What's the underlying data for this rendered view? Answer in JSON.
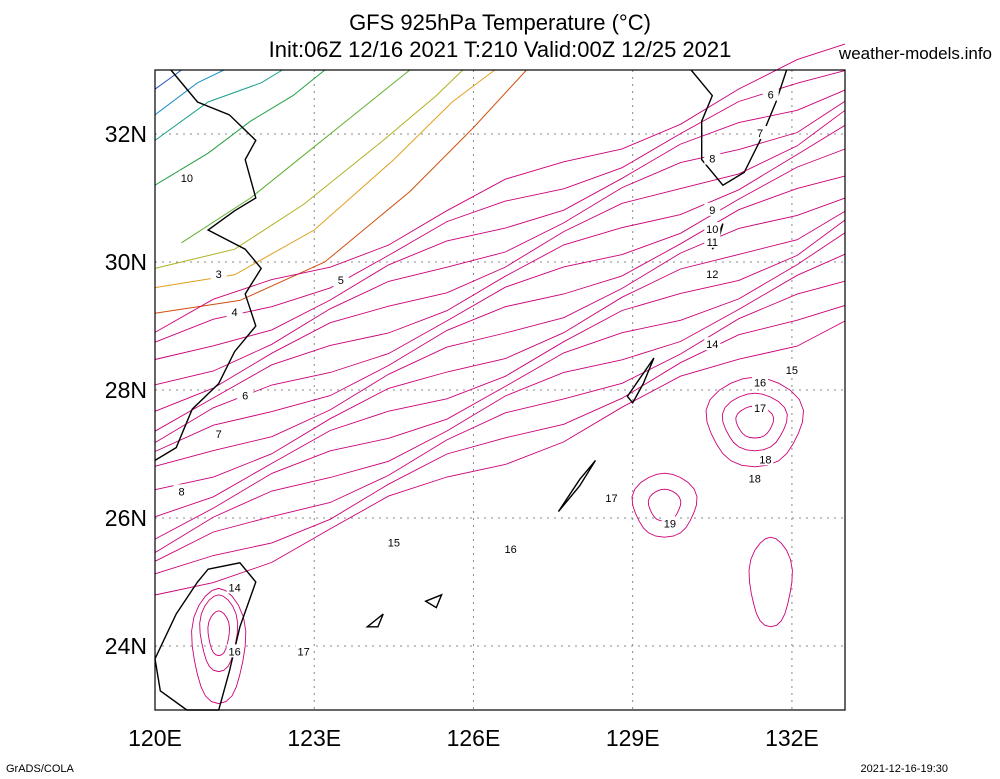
{
  "chart_data": {
    "type": "contour",
    "title": "GFS 925hPa Temperature (°C)",
    "subtitle": "Init:06Z 12/16 2021 T:210 Valid:00Z 12/25 2021",
    "x_ticks": [
      "120E",
      "123E",
      "126E",
      "129E",
      "132E"
    ],
    "y_ticks": [
      "24N",
      "26N",
      "28N",
      "30N",
      "32N"
    ],
    "xlim": [
      120,
      133
    ],
    "ylim": [
      23,
      33
    ],
    "grid": true,
    "contour_labels": [
      {
        "text": "6",
        "lon": 131.6,
        "lat": 32.6
      },
      {
        "text": "7",
        "lon": 131.4,
        "lat": 32.0
      },
      {
        "text": "8",
        "lon": 130.5,
        "lat": 31.6
      },
      {
        "text": "9",
        "lon": 130.5,
        "lat": 30.8
      },
      {
        "text": "10",
        "lon": 130.5,
        "lat": 30.5
      },
      {
        "text": "11",
        "lon": 130.5,
        "lat": 30.3
      },
      {
        "text": "12",
        "lon": 130.5,
        "lat": 29.8
      },
      {
        "text": "14",
        "lon": 130.5,
        "lat": 28.7
      },
      {
        "text": "15",
        "lon": 132.0,
        "lat": 28.3
      },
      {
        "text": "16",
        "lon": 131.4,
        "lat": 28.1
      },
      {
        "text": "17",
        "lon": 131.4,
        "lat": 27.7
      },
      {
        "text": "18",
        "lon": 131.5,
        "lat": 26.9
      },
      {
        "text": "18",
        "lon": 131.3,
        "lat": 26.6
      },
      {
        "text": "17",
        "lon": 128.6,
        "lat": 26.3
      },
      {
        "text": "19",
        "lon": 129.7,
        "lat": 25.9
      },
      {
        "text": "16",
        "lon": 126.7,
        "lat": 25.5
      },
      {
        "text": "15",
        "lon": 124.5,
        "lat": 25.6
      },
      {
        "text": "14",
        "lon": 121.5,
        "lat": 24.9
      },
      {
        "text": "16",
        "lon": 121.5,
        "lat": 23.9
      },
      {
        "text": "17",
        "lon": 122.8,
        "lat": 23.9
      },
      {
        "text": "10",
        "lon": 120.6,
        "lat": 31.3
      },
      {
        "text": "3",
        "lon": 121.2,
        "lat": 29.8
      },
      {
        "text": "4",
        "lon": 121.5,
        "lat": 29.2
      },
      {
        "text": "5",
        "lon": 123.5,
        "lat": 29.7
      },
      {
        "text": "6",
        "lon": 121.7,
        "lat": 27.9
      },
      {
        "text": "7",
        "lon": 121.2,
        "lat": 27.3
      },
      {
        "text": "8",
        "lon": 120.5,
        "lat": 26.4
      }
    ]
  },
  "header": {
    "title": "GFS 925hPa Temperature (°C)",
    "subtitle": "Init:06Z 12/16 2021 T:210 Valid:00Z 12/25 2021",
    "site": "weather-models.info"
  },
  "footer": {
    "left": "GrADS/COLA",
    "right": "2021-12-16-19:30"
  }
}
